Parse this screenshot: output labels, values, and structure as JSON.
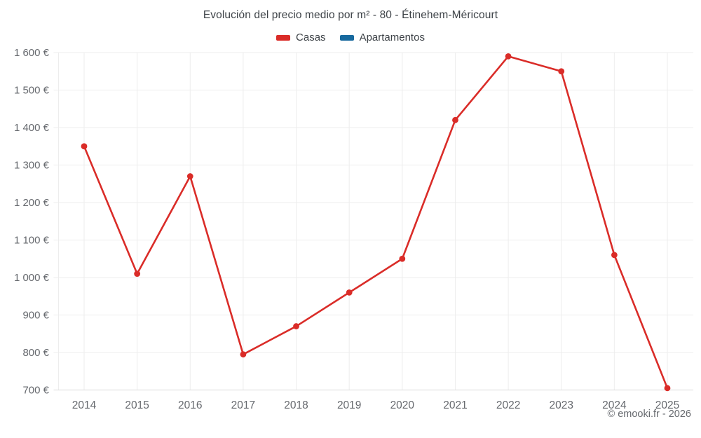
{
  "title": "Evolución del precio medio por m² - 80 - Étinehem-Méricourt",
  "legend": [
    {
      "label": "Casas",
      "color": "#da2c28"
    },
    {
      "label": "Apartamentos",
      "color": "#17699e"
    }
  ],
  "footer": {
    "copyright": "© emooki.fr - 2026"
  },
  "chart_data": {
    "type": "line",
    "title": "Evolución del precio medio por m² - 80 - Étinehem-Méricourt",
    "categories": [
      "2014",
      "2015",
      "2016",
      "2017",
      "2018",
      "2019",
      "2020",
      "2021",
      "2022",
      "2023",
      "2024",
      "2025"
    ],
    "series": [
      {
        "name": "Casas",
        "color": "#da2c28",
        "values": [
          1350,
          1010,
          1270,
          795,
          870,
          960,
          1050,
          1420,
          1590,
          1550,
          1060,
          705
        ]
      },
      {
        "name": "Apartamentos",
        "color": "#17699e",
        "values": []
      }
    ],
    "xlabel": "",
    "ylabel": "",
    "ylim": [
      700,
      1600
    ],
    "ytick_step": 100,
    "y_tick_labels": [
      "700 €",
      "800 €",
      "900 €",
      "1 000 €",
      "1 100 €",
      "1 200 €",
      "1 300 €",
      "1 400 €",
      "1 500 €",
      "1 600 €"
    ],
    "grid": true,
    "legend_position": "top",
    "grid_color": "#ededed",
    "axis_line_color": "#d9d9d9",
    "tick_label_color": "#66696e"
  }
}
